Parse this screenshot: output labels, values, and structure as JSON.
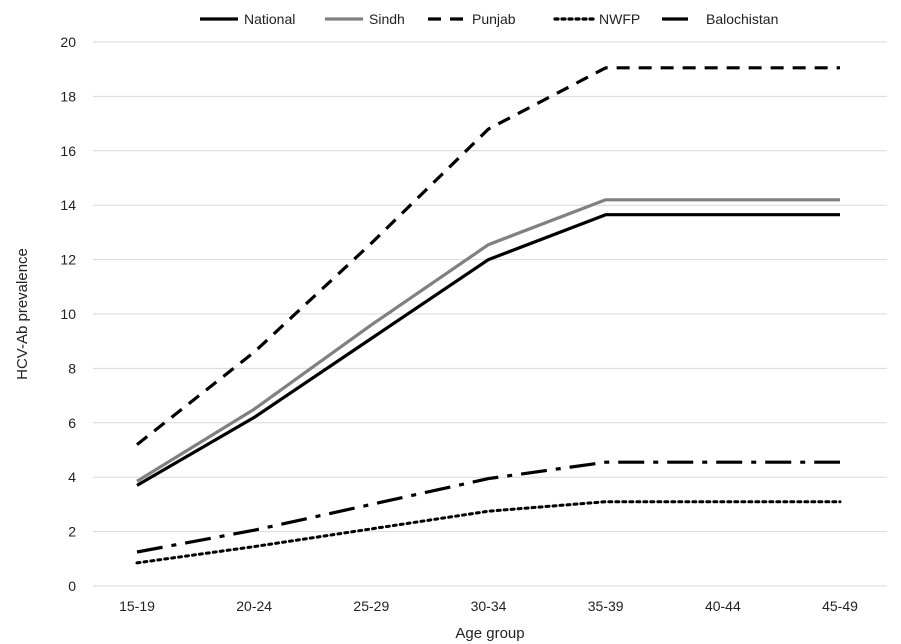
{
  "chart_data": {
    "type": "line",
    "xlabel": "Age group",
    "ylabel": "HCV-Ab prevalence",
    "categories": [
      "15-19",
      "20-24",
      "25-29",
      "30-34",
      "35-39",
      "40-44",
      "45-49"
    ],
    "ylim": [
      0,
      20
    ],
    "yticks": [
      0,
      2,
      4,
      6,
      8,
      10,
      12,
      14,
      16,
      18,
      20
    ],
    "grid": "horizontal",
    "legend_position": "top",
    "series": [
      {
        "name": "National",
        "values": [
          3.7,
          6.2,
          9.1,
          12.0,
          13.65,
          13.65,
          13.65
        ],
        "color": "#000000",
        "style": "solid"
      },
      {
        "name": "Sindh",
        "values": [
          3.85,
          6.5,
          9.6,
          12.55,
          14.2,
          14.2,
          14.2
        ],
        "color": "#808080",
        "style": "solid"
      },
      {
        "name": "Punjab",
        "values": [
          5.2,
          8.6,
          12.6,
          16.8,
          19.05,
          19.05,
          19.05
        ],
        "color": "#000000",
        "style": "dashed"
      },
      {
        "name": "NWFP",
        "values": [
          0.85,
          1.45,
          2.1,
          2.75,
          3.1,
          3.1,
          3.1
        ],
        "color": "#000000",
        "style": "dotted"
      },
      {
        "name": "Balochistan",
        "values": [
          1.25,
          2.05,
          3.0,
          3.95,
          4.55,
          4.55,
          4.55
        ],
        "color": "#000000",
        "style": "dashdot"
      }
    ]
  }
}
